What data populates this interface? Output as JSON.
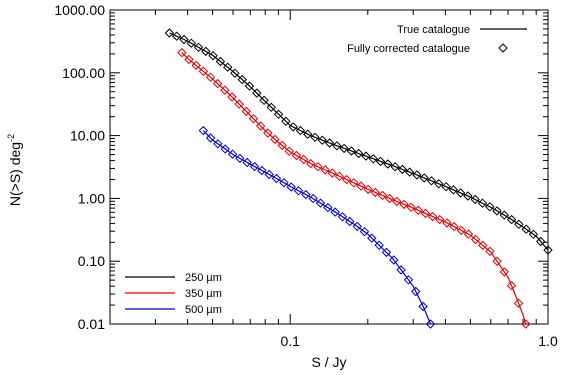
{
  "chart_data": {
    "type": "line",
    "title": "",
    "xlabel": "S / Jy",
    "ylabel_main": "N(>S) deg",
    "ylabel_sup": "-2",
    "xscale": "log",
    "yscale": "log",
    "xlim": [
      0.02,
      1.0
    ],
    "ylim": [
      0.01,
      1000
    ],
    "x_ticks": [
      "0.1",
      "1.0"
    ],
    "y_ticks": [
      "0.01",
      "0.10",
      "1.00",
      "10.00",
      "100.00",
      "1000.00"
    ],
    "legend_top_right": {
      "items": [
        "True catalogue",
        "Fully corrected catalogue"
      ]
    },
    "legend_bottom_left": {
      "items": [
        "250 µm",
        "350 µm",
        "500 µm"
      ]
    },
    "series": [
      {
        "name": "250 µm",
        "color": "#000000",
        "x": [
          0.034,
          0.04,
          0.05,
          0.06,
          0.07,
          0.08,
          0.09,
          0.1,
          0.12,
          0.15,
          0.2,
          0.25,
          0.3,
          0.4,
          0.5,
          0.6,
          0.7,
          0.8,
          0.9,
          1.0
        ],
        "y": [
          430,
          320,
          190,
          105,
          60,
          35,
          22,
          14.5,
          10,
          7.0,
          4.6,
          3.3,
          2.5,
          1.55,
          1.05,
          0.72,
          0.5,
          0.35,
          0.25,
          0.15
        ]
      },
      {
        "name": "350 µm",
        "color": "#e00000",
        "x": [
          0.038,
          0.04,
          0.05,
          0.06,
          0.07,
          0.08,
          0.09,
          0.1,
          0.12,
          0.15,
          0.2,
          0.25,
          0.3,
          0.4,
          0.5,
          0.6,
          0.7,
          0.75,
          0.8,
          0.82
        ],
        "y": [
          210,
          170,
          80,
          40,
          21,
          12,
          7.8,
          5.5,
          3.6,
          2.4,
          1.4,
          0.95,
          0.7,
          0.42,
          0.26,
          0.14,
          0.055,
          0.028,
          0.014,
          0.01
        ]
      },
      {
        "name": "500 µm",
        "color": "#0000cc",
        "x": [
          0.046,
          0.05,
          0.06,
          0.07,
          0.08,
          0.09,
          0.1,
          0.12,
          0.15,
          0.18,
          0.2,
          0.25,
          0.3,
          0.33,
          0.35
        ],
        "y": [
          12,
          8.5,
          5.0,
          3.5,
          2.6,
          2.0,
          1.55,
          1.05,
          0.6,
          0.37,
          0.27,
          0.11,
          0.04,
          0.018,
          0.01
        ]
      }
    ],
    "diamond_markers": "Fully corrected catalogue"
  }
}
